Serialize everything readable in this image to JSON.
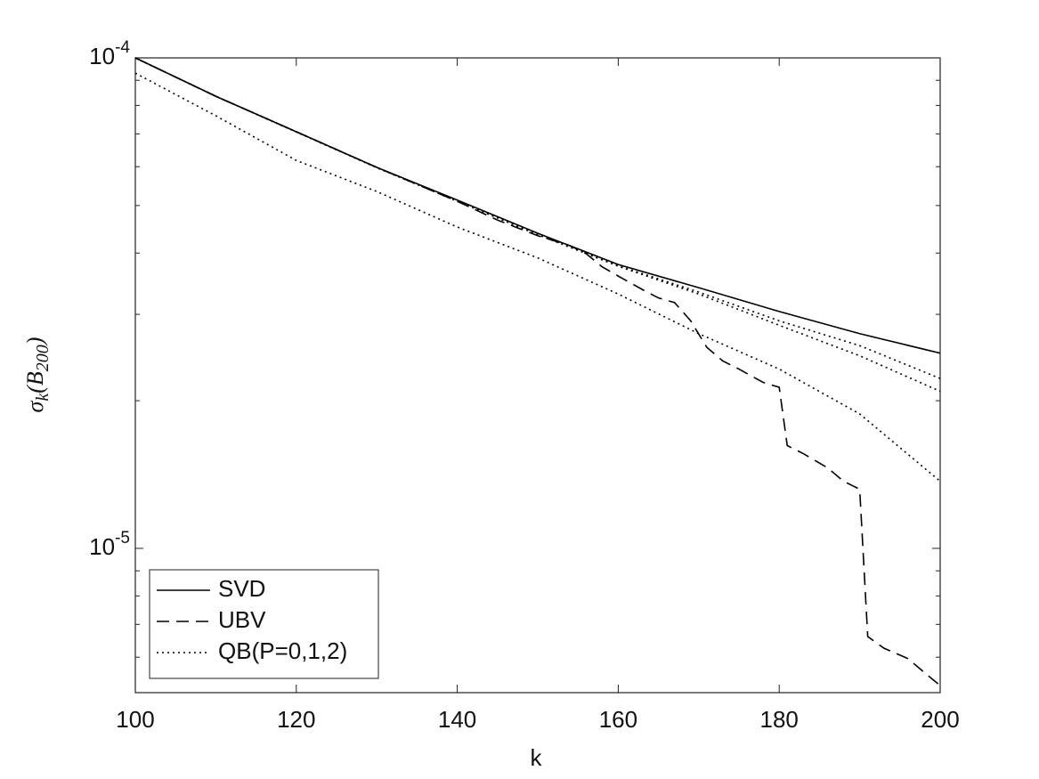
{
  "chart_data": {
    "type": "line",
    "xlabel": "k",
    "ylabel": "σ_k(B_200)",
    "xlim": [
      100,
      200
    ],
    "xticks": [
      100,
      120,
      140,
      160,
      180,
      200
    ],
    "ylim": [
      5.08e-06,
      0.0001
    ],
    "ylog": true,
    "yticks": [
      {
        "value": 1e-05,
        "label": "10^-5"
      },
      {
        "value": 0.0001,
        "label": "10^-4"
      }
    ],
    "yminorticks": [
      6e-06,
      7e-06,
      8e-06,
      9e-06,
      2e-05,
      3e-05,
      4e-05,
      5e-05,
      6e-05,
      7e-05,
      8e-05,
      9e-05
    ],
    "legend": "lower left",
    "series": [
      {
        "name": "SVD",
        "color": "#000000",
        "style": "solid",
        "x": [
          100,
          110,
          120,
          130,
          140,
          150,
          160,
          170,
          180,
          190,
          200
        ],
        "values": [
          0.0001,
          8.35e-05,
          7.07e-05,
          5.98e-05,
          5.13e-05,
          4.39e-05,
          3.79e-05,
          3.4e-05,
          3.04e-05,
          2.74e-05,
          2.5e-05
        ]
      },
      {
        "name": "UBV",
        "color": "#000000",
        "style": "dashed",
        "x": [
          100,
          110,
          120,
          130,
          140,
          145,
          150,
          154,
          156,
          158,
          160,
          163,
          165,
          167,
          169,
          171,
          173,
          175,
          178,
          180,
          181,
          183,
          186,
          188,
          190,
          191,
          193,
          196,
          198,
          200
        ],
        "values": [
          0.0001,
          8.35e-05,
          7.07e-05,
          5.98e-05,
          5.1e-05,
          4.67e-05,
          4.34e-05,
          4.14e-05,
          3.99e-05,
          3.75e-05,
          3.59e-05,
          3.37e-05,
          3.24e-05,
          3.17e-05,
          2.91e-05,
          2.57e-05,
          2.41e-05,
          2.32e-05,
          2.18e-05,
          2.13e-05,
          1.62e-05,
          1.56e-05,
          1.46e-05,
          1.37e-05,
          1.32e-05,
          6.61e-06,
          6.26e-06,
          5.96e-06,
          5.59e-06,
          5.25e-06
        ]
      },
      {
        "name": "QB(P=0,1,2)",
        "color": "#000000",
        "style": "dotted",
        "x": [
          100,
          110,
          120,
          130,
          140,
          150,
          160,
          170,
          180,
          190,
          200
        ],
        "values": [
          [
            0.0001,
            8.35e-05,
            7.07e-05,
            5.98e-05,
            5.11e-05,
            4.37e-05,
            3.77e-05,
            3.33e-05,
            2.91e-05,
            2.59e-05,
            2.22e-05
          ],
          [
            0.0001,
            8.35e-05,
            7.06e-05,
            5.97e-05,
            5.1e-05,
            4.36e-05,
            3.76e-05,
            3.3e-05,
            2.85e-05,
            2.47e-05,
            2.09e-05
          ],
          [
            9.31e-05,
            7.62e-05,
            6.18e-05,
            5.34e-05,
            4.52e-05,
            3.91e-05,
            3.3e-05,
            2.74e-05,
            2.32e-05,
            1.88e-05,
            1.37e-05
          ]
        ]
      }
    ]
  }
}
